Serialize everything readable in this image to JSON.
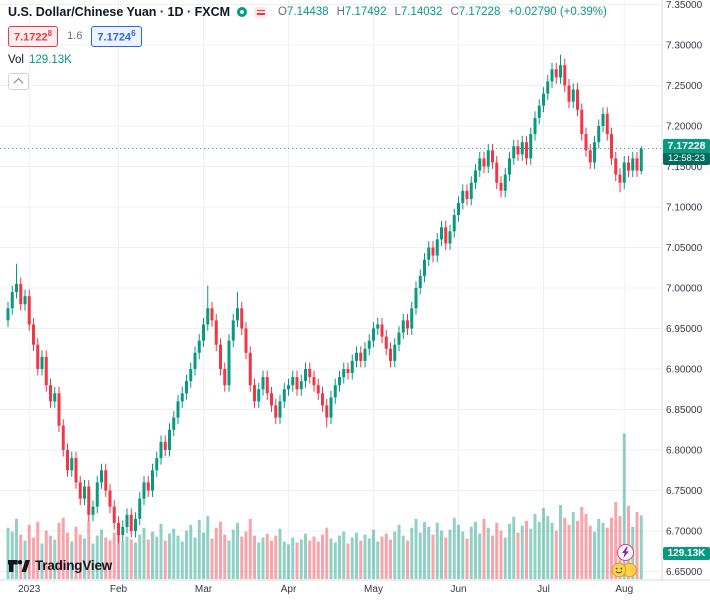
{
  "header": {
    "symbol_title": "U.S. Dollar/Chinese Yuan · 1D · FXCM",
    "ohlc": {
      "o_label": "O",
      "o_value": "7.14438",
      "h_label": "H",
      "h_value": "7.17492",
      "l_label": "L",
      "l_value": "7.14032",
      "c_label": "C",
      "c_value": "7.17228",
      "change": "+0.02790 (+0.39%)"
    },
    "bid_main": "7.1722",
    "bid_sup": "8",
    "spread": "1.6",
    "ask_main": "7.1724",
    "ask_sup": "6",
    "vol_label": "Vol",
    "vol_value": "129.13K"
  },
  "price_scale": {
    "labels": [
      "7.35000",
      "7.30000",
      "7.25000",
      "7.20000",
      "7.15000",
      "7.10000",
      "7.05000",
      "7.00000",
      "6.95000",
      "6.90000",
      "6.85000",
      "6.80000",
      "6.75000",
      "6.70000",
      "6.65000"
    ],
    "last_price": "7.17228",
    "countdown": "12:58:23",
    "volume_badge": "129.13K"
  },
  "logo": {
    "text": "TradingView"
  },
  "colors": {
    "up": "#089981",
    "down": "#f23645",
    "vol_up": "rgba(8,153,129,0.45)",
    "vol_down": "rgba(242,54,69,0.45)",
    "grid": "#eef0f3",
    "axis_line": "#d6d9e0",
    "axis_text": "#363a45",
    "accent_blue": "#2962ff",
    "badge_green": "#089981"
  },
  "chart_data": {
    "type": "candlestick",
    "title": "U.S. Dollar/Chinese Yuan (USDCNH) · 1D · FXCM",
    "interval": "1D",
    "exchange": "FXCM",
    "last_bar": {
      "open": 7.14438,
      "high": 7.17492,
      "low": 7.14032,
      "close": 7.17228,
      "change": 0.0279,
      "change_pct": 0.39,
      "volume_k": 129.13
    },
    "last_close": 7.17228,
    "price_ylim": [
      6.645,
      7.345
    ],
    "volume_ylim_k": [
      0,
      300
    ],
    "volume_scale_max": 300,
    "legend_position": "top-left",
    "grid": true,
    "months": [
      {
        "label": "2023",
        "index": 5
      },
      {
        "label": "Feb",
        "index": 26
      },
      {
        "label": "Mar",
        "index": 46
      },
      {
        "label": "Apr",
        "index": 66
      },
      {
        "label": "May",
        "index": 86
      },
      {
        "label": "Jun",
        "index": 106
      },
      {
        "label": "Jul",
        "index": 126
      },
      {
        "label": "Aug",
        "index": 145
      }
    ],
    "candles": [
      [
        6.96,
        6.983,
        6.952,
        6.975
      ],
      [
        6.975,
        7.003,
        6.967,
        6.995
      ],
      [
        6.995,
        7.03,
        6.987,
        7.005
      ],
      [
        7.005,
        7.013,
        6.972,
        6.98
      ],
      [
        6.98,
        6.998,
        6.972,
        6.99
      ],
      [
        6.99,
        6.998,
        6.947,
        6.955
      ],
      [
        6.955,
        6.963,
        6.922,
        6.93
      ],
      [
        6.93,
        6.938,
        6.892,
        6.9
      ],
      [
        6.9,
        6.923,
        6.892,
        6.915
      ],
      [
        6.915,
        6.923,
        6.872,
        6.88
      ],
      [
        6.88,
        6.888,
        6.852,
        6.86
      ],
      [
        6.86,
        6.878,
        6.852,
        6.87
      ],
      [
        6.87,
        6.878,
        6.822,
        6.83
      ],
      [
        6.83,
        6.838,
        6.792,
        6.8
      ],
      [
        6.8,
        6.808,
        6.767,
        6.775
      ],
      [
        6.775,
        6.798,
        6.767,
        6.79
      ],
      [
        6.79,
        6.798,
        6.752,
        6.76
      ],
      [
        6.76,
        6.768,
        6.732,
        6.74
      ],
      [
        6.74,
        6.763,
        6.732,
        6.755
      ],
      [
        6.755,
        6.763,
        6.712,
        6.72
      ],
      [
        6.72,
        6.738,
        6.712,
        6.73
      ],
      [
        6.73,
        6.768,
        6.722,
        6.76
      ],
      [
        6.76,
        6.783,
        6.752,
        6.775
      ],
      [
        6.775,
        6.783,
        6.742,
        6.75
      ],
      [
        6.75,
        6.758,
        6.722,
        6.73
      ],
      [
        6.73,
        6.738,
        6.702,
        6.71
      ],
      [
        6.71,
        6.718,
        6.685,
        6.695
      ],
      [
        6.695,
        6.713,
        6.687,
        6.705
      ],
      [
        6.705,
        6.728,
        6.697,
        6.72
      ],
      [
        6.72,
        6.728,
        6.692,
        6.7
      ],
      [
        6.7,
        6.723,
        6.692,
        6.715
      ],
      [
        6.715,
        6.748,
        6.707,
        6.74
      ],
      [
        6.74,
        6.768,
        6.732,
        6.76
      ],
      [
        6.76,
        6.768,
        6.742,
        6.75
      ],
      [
        6.75,
        6.783,
        6.742,
        6.775
      ],
      [
        6.775,
        6.798,
        6.767,
        6.79
      ],
      [
        6.79,
        6.818,
        6.782,
        6.81
      ],
      [
        6.81,
        6.818,
        6.792,
        6.8
      ],
      [
        6.8,
        6.833,
        6.792,
        6.825
      ],
      [
        6.825,
        6.848,
        6.817,
        6.84
      ],
      [
        6.84,
        6.868,
        6.832,
        6.86
      ],
      [
        6.86,
        6.878,
        6.852,
        6.87
      ],
      [
        6.87,
        6.893,
        6.862,
        6.885
      ],
      [
        6.885,
        6.908,
        6.877,
        6.9
      ],
      [
        6.9,
        6.928,
        6.892,
        6.92
      ],
      [
        6.92,
        6.943,
        6.912,
        6.935
      ],
      [
        6.935,
        6.963,
        6.927,
        6.955
      ],
      [
        6.955,
        7.003,
        6.947,
        6.975
      ],
      [
        6.975,
        6.983,
        6.952,
        6.96
      ],
      [
        6.96,
        6.968,
        6.922,
        6.93
      ],
      [
        6.93,
        6.938,
        6.892,
        6.9
      ],
      [
        6.9,
        6.908,
        6.872,
        6.88
      ],
      [
        6.88,
        6.943,
        6.872,
        6.935
      ],
      [
        6.935,
        6.968,
        6.927,
        6.96
      ],
      [
        6.96,
        6.995,
        6.952,
        6.975
      ],
      [
        6.975,
        6.983,
        6.942,
        6.95
      ],
      [
        6.95,
        6.958,
        6.912,
        6.92
      ],
      [
        6.92,
        6.928,
        6.872,
        6.88
      ],
      [
        6.88,
        6.888,
        6.852,
        6.86
      ],
      [
        6.86,
        6.883,
        6.852,
        6.875
      ],
      [
        6.875,
        6.898,
        6.867,
        6.89
      ],
      [
        6.89,
        6.898,
        6.862,
        6.87
      ],
      [
        6.87,
        6.878,
        6.847,
        6.855
      ],
      [
        6.855,
        6.863,
        6.832,
        6.84
      ],
      [
        6.84,
        6.868,
        6.832,
        6.86
      ],
      [
        6.86,
        6.883,
        6.852,
        6.875
      ],
      [
        6.875,
        6.888,
        6.867,
        6.88
      ],
      [
        6.88,
        6.898,
        6.872,
        6.89
      ],
      [
        6.89,
        6.898,
        6.867,
        6.875
      ],
      [
        6.875,
        6.893,
        6.867,
        6.885
      ],
      [
        6.885,
        6.908,
        6.877,
        6.9
      ],
      [
        6.9,
        6.908,
        6.882,
        6.89
      ],
      [
        6.89,
        6.898,
        6.872,
        6.88
      ],
      [
        6.88,
        6.888,
        6.862,
        6.87
      ],
      [
        6.87,
        6.878,
        6.847,
        6.855
      ],
      [
        6.855,
        6.863,
        6.828,
        6.84
      ],
      [
        6.84,
        6.873,
        6.832,
        6.865
      ],
      [
        6.865,
        6.888,
        6.857,
        6.88
      ],
      [
        6.88,
        6.898,
        6.872,
        6.89
      ],
      [
        6.89,
        6.908,
        6.882,
        6.9
      ],
      [
        6.9,
        6.908,
        6.887,
        6.895
      ],
      [
        6.895,
        6.918,
        6.887,
        6.91
      ],
      [
        6.91,
        6.928,
        6.902,
        6.92
      ],
      [
        6.92,
        6.928,
        6.902,
        6.91
      ],
      [
        6.91,
        6.933,
        6.902,
        6.925
      ],
      [
        6.925,
        6.943,
        6.917,
        6.935
      ],
      [
        6.935,
        6.958,
        6.927,
        6.95
      ],
      [
        6.95,
        6.963,
        6.942,
        6.955
      ],
      [
        6.955,
        6.963,
        6.932,
        6.94
      ],
      [
        6.94,
        6.948,
        6.917,
        6.925
      ],
      [
        6.925,
        6.933,
        6.902,
        6.91
      ],
      [
        6.91,
        6.938,
        6.902,
        6.93
      ],
      [
        6.93,
        6.953,
        6.922,
        6.945
      ],
      [
        6.945,
        6.968,
        6.937,
        6.96
      ],
      [
        6.96,
        6.968,
        6.942,
        6.95
      ],
      [
        6.95,
        6.983,
        6.942,
        6.975
      ],
      [
        6.975,
        7.008,
        6.967,
        7.0
      ],
      [
        7.0,
        7.023,
        6.992,
        7.015
      ],
      [
        7.015,
        7.043,
        7.007,
        7.035
      ],
      [
        7.035,
        7.058,
        7.027,
        7.05
      ],
      [
        7.05,
        7.058,
        7.032,
        7.04
      ],
      [
        7.04,
        7.068,
        7.032,
        7.06
      ],
      [
        7.06,
        7.083,
        7.052,
        7.075
      ],
      [
        7.075,
        7.083,
        7.047,
        7.055
      ],
      [
        7.055,
        7.078,
        7.047,
        7.07
      ],
      [
        7.07,
        7.098,
        7.062,
        7.09
      ],
      [
        7.09,
        7.113,
        7.082,
        7.105
      ],
      [
        7.105,
        7.128,
        7.097,
        7.12
      ],
      [
        7.12,
        7.128,
        7.102,
        7.11
      ],
      [
        7.11,
        7.138,
        7.102,
        7.13
      ],
      [
        7.13,
        7.153,
        7.122,
        7.145
      ],
      [
        7.145,
        7.168,
        7.137,
        7.16
      ],
      [
        7.16,
        7.168,
        7.142,
        7.15
      ],
      [
        7.15,
        7.178,
        7.142,
        7.17
      ],
      [
        7.17,
        7.178,
        7.147,
        7.155
      ],
      [
        7.155,
        7.163,
        7.122,
        7.13
      ],
      [
        7.13,
        7.138,
        7.112,
        7.12
      ],
      [
        7.12,
        7.148,
        7.112,
        7.14
      ],
      [
        7.14,
        7.168,
        7.132,
        7.16
      ],
      [
        7.16,
        7.183,
        7.152,
        7.175
      ],
      [
        7.175,
        7.183,
        7.157,
        7.165
      ],
      [
        7.165,
        7.188,
        7.157,
        7.18
      ],
      [
        7.18,
        7.188,
        7.152,
        7.16
      ],
      [
        7.16,
        7.198,
        7.152,
        7.19
      ],
      [
        7.19,
        7.218,
        7.182,
        7.21
      ],
      [
        7.21,
        7.233,
        7.202,
        7.225
      ],
      [
        7.225,
        7.248,
        7.217,
        7.24
      ],
      [
        7.24,
        7.263,
        7.232,
        7.255
      ],
      [
        7.255,
        7.278,
        7.247,
        7.27
      ],
      [
        7.27,
        7.278,
        7.252,
        7.26
      ],
      [
        7.26,
        7.288,
        7.252,
        7.275
      ],
      [
        7.275,
        7.283,
        7.242,
        7.25
      ],
      [
        7.25,
        7.258,
        7.222,
        7.23
      ],
      [
        7.23,
        7.253,
        7.222,
        7.245
      ],
      [
        7.245,
        7.253,
        7.212,
        7.22
      ],
      [
        7.22,
        7.228,
        7.182,
        7.19
      ],
      [
        7.19,
        7.198,
        7.162,
        7.17
      ],
      [
        7.17,
        7.178,
        7.147,
        7.155
      ],
      [
        7.155,
        7.188,
        7.147,
        7.18
      ],
      [
        7.18,
        7.208,
        7.172,
        7.2
      ],
      [
        7.2,
        7.223,
        7.192,
        7.215
      ],
      [
        7.215,
        7.223,
        7.182,
        7.19
      ],
      [
        7.19,
        7.198,
        7.152,
        7.16
      ],
      [
        7.16,
        7.168,
        7.132,
        7.14
      ],
      [
        7.14,
        7.148,
        7.118,
        7.13
      ],
      [
        7.13,
        7.163,
        7.122,
        7.155
      ],
      [
        7.155,
        7.163,
        7.137,
        7.145
      ],
      [
        7.145,
        7.168,
        7.137,
        7.16
      ],
      [
        7.16,
        7.168,
        7.137,
        7.145
      ],
      [
        7.14438,
        7.17492,
        7.14032,
        7.17228
      ]
    ],
    "volumes_k": [
      104,
      96,
      122,
      90,
      78,
      110,
      84,
      116,
      72,
      98,
      88,
      80,
      114,
      124,
      94,
      76,
      106,
      90,
      82,
      118,
      72,
      88,
      100,
      84,
      78,
      94,
      110,
      76,
      86,
      80,
      74,
      90,
      104,
      80,
      96,
      86,
      112,
      78,
      92,
      102,
      88,
      76,
      98,
      110,
      84,
      120,
      94,
      128,
      82,
      104,
      116,
      90,
      78,
      100,
      114,
      86,
      96,
      122,
      88,
      74,
      84,
      92,
      78,
      88,
      102,
      76,
      70,
      84,
      74,
      80,
      92,
      78,
      86,
      76,
      90,
      104,
      82,
      74,
      88,
      96,
      72,
      84,
      94,
      78,
      90,
      82,
      100,
      76,
      86,
      92,
      80,
      96,
      110,
      88,
      78,
      104,
      122,
      94,
      116,
      106,
      90,
      114,
      98,
      84,
      100,
      124,
      110,
      96,
      82,
      106,
      116,
      92,
      122,
      104,
      88,
      114,
      98,
      84,
      112,
      126,
      94,
      108,
      118,
      102,
      132,
      116,
      144,
      128,
      114,
      98,
      150,
      124,
      110,
      136,
      118,
      146,
      132,
      108,
      96,
      122,
      114,
      104,
      124,
      156,
      128,
      295,
      148,
      106,
      136,
      129.13
    ]
  }
}
